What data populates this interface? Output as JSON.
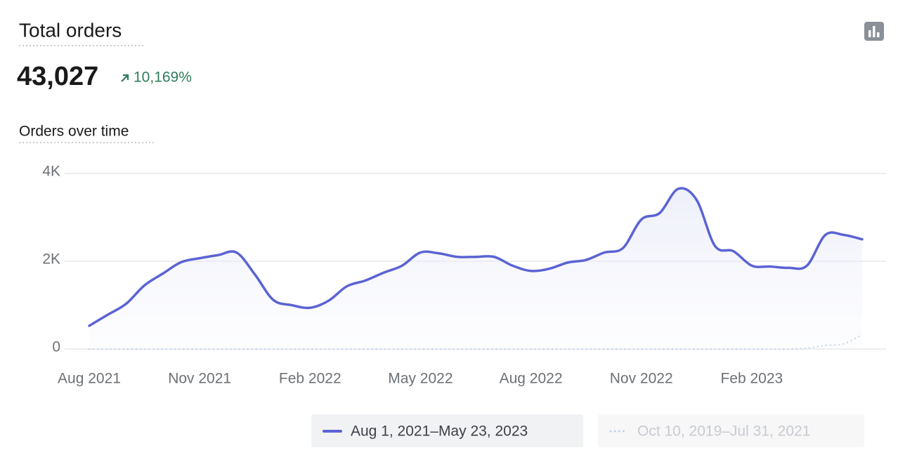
{
  "header": {
    "title": "Total orders",
    "total": "43,027",
    "change": "10,169%"
  },
  "chart_data": {
    "type": "line",
    "title": "Orders over time",
    "categories": [
      "Aug 2021",
      null,
      null,
      null,
      null,
      null,
      "Nov 2021",
      null,
      null,
      null,
      null,
      null,
      "Feb 2022",
      null,
      null,
      null,
      null,
      null,
      "May 2022",
      null,
      null,
      null,
      null,
      null,
      "Aug 2022",
      null,
      null,
      null,
      null,
      null,
      "Nov 2022",
      null,
      null,
      null,
      null,
      null,
      "Feb 2023",
      null,
      null,
      null,
      null,
      null,
      null
    ],
    "series": [
      {
        "name": "Aug 1, 2021–May 23, 2023",
        "color": "#5b63d3",
        "values": [
          530,
          780,
          1030,
          1450,
          1720,
          1980,
          2070,
          2140,
          2200,
          1700,
          1120,
          1000,
          940,
          1100,
          1430,
          1560,
          1740,
          1900,
          2200,
          2180,
          2100,
          2100,
          2100,
          1900,
          1780,
          1830,
          1970,
          2030,
          2200,
          2300,
          2950,
          3100,
          3650,
          3400,
          2350,
          2230,
          1900,
          1880,
          1850,
          1900,
          2600,
          2600,
          2500
        ]
      },
      {
        "name": "Oct 10, 2019–Jul 31, 2021",
        "color": "#c5d3e8",
        "values": [
          0,
          0,
          0,
          0,
          0,
          0,
          0,
          0,
          0,
          0,
          0,
          0,
          0,
          0,
          0,
          0,
          0,
          0,
          0,
          0,
          0,
          0,
          0,
          0,
          0,
          0,
          0,
          0,
          0,
          0,
          0,
          0,
          0,
          0,
          0,
          0,
          0,
          0,
          0,
          20,
          80,
          120,
          330
        ]
      }
    ],
    "ylim": [
      0,
      4000
    ],
    "yticks": [
      0,
      {
        "value": 2000,
        "label": "2K"
      },
      {
        "value": 4000,
        "label": "4K"
      }
    ],
    "grid": true
  }
}
